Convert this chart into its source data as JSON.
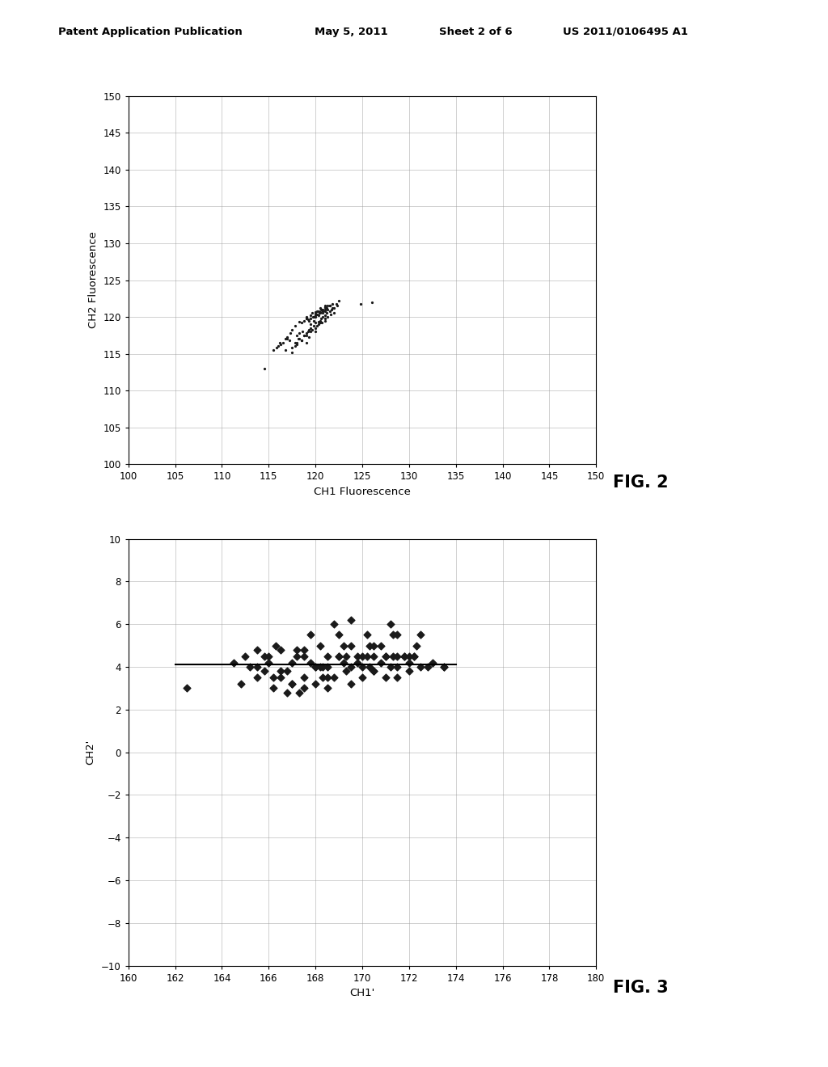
{
  "fig1": {
    "xlabel": "CH1 Fluorescence",
    "ylabel": "CH2 Fluorescence",
    "xlim": [
      100,
      150
    ],
    "ylim": [
      100,
      150
    ],
    "xticks": [
      100,
      105,
      110,
      115,
      120,
      125,
      130,
      135,
      140,
      145,
      150
    ],
    "yticks": [
      100,
      105,
      110,
      115,
      120,
      125,
      130,
      135,
      140,
      145,
      150
    ],
    "fig_label": "FIG. 2",
    "scatter_x": [
      114.5,
      116.2,
      116.8,
      117.0,
      117.2,
      117.5,
      117.8,
      118.0,
      118.0,
      118.2,
      118.3,
      118.5,
      118.6,
      118.8,
      119.0,
      119.0,
      119.2,
      119.3,
      119.5,
      119.5,
      119.6,
      119.8,
      120.0,
      120.0,
      120.0,
      120.2,
      120.3,
      120.3,
      120.5,
      120.5,
      120.6,
      120.7,
      120.8,
      120.8,
      121.0,
      121.0,
      121.0,
      121.2,
      121.2,
      121.3,
      121.5,
      121.5,
      121.6,
      121.7,
      121.8,
      122.0,
      122.0,
      122.2,
      122.3,
      122.5,
      119.0,
      119.3,
      119.8,
      120.2,
      120.5,
      120.8,
      121.0,
      121.3,
      121.5,
      121.8,
      118.5,
      119.2,
      119.7,
      120.0,
      120.4,
      120.7,
      121.0,
      121.3,
      118.8,
      119.5,
      120.0,
      120.3,
      120.8,
      121.0,
      119.0,
      119.6,
      120.2,
      120.5,
      121.0,
      118.3,
      119.0,
      119.5,
      120.0,
      120.6,
      117.5,
      118.0,
      118.5,
      119.0,
      119.5,
      120.0,
      120.5,
      121.0,
      117.8,
      118.3,
      118.8,
      119.3,
      119.8,
      120.3,
      124.8,
      126.0,
      115.5,
      115.8,
      116.0,
      116.3,
      116.5,
      116.8,
      117.0,
      117.3,
      117.5,
      117.8
    ],
    "scatter_y": [
      113.0,
      116.5,
      115.5,
      117.0,
      116.8,
      115.2,
      116.0,
      116.5,
      117.5,
      117.0,
      117.8,
      116.8,
      118.0,
      117.5,
      116.5,
      117.8,
      118.0,
      117.3,
      118.5,
      119.0,
      118.3,
      119.5,
      118.0,
      119.2,
      120.0,
      118.8,
      119.0,
      120.2,
      119.5,
      120.5,
      119.8,
      119.2,
      120.0,
      120.8,
      119.5,
      120.2,
      121.0,
      120.5,
      121.2,
      120.0,
      120.8,
      121.5,
      120.3,
      121.0,
      121.8,
      120.5,
      121.2,
      121.8,
      121.5,
      122.2,
      119.8,
      119.5,
      120.0,
      120.3,
      120.7,
      120.5,
      120.8,
      121.0,
      121.5,
      121.2,
      119.2,
      119.7,
      120.0,
      120.4,
      120.6,
      121.0,
      121.3,
      121.5,
      119.5,
      119.8,
      120.2,
      120.8,
      121.0,
      121.3,
      120.0,
      120.5,
      120.8,
      121.2,
      121.5,
      119.3,
      119.8,
      120.2,
      120.7,
      121.0,
      115.8,
      116.3,
      116.8,
      117.5,
      118.0,
      118.5,
      119.2,
      119.8,
      116.5,
      117.0,
      117.5,
      118.2,
      118.8,
      119.3,
      121.8,
      122.0,
      115.5,
      115.8,
      116.0,
      116.3,
      116.5,
      117.0,
      117.3,
      117.8,
      118.2,
      118.8
    ]
  },
  "fig2": {
    "xlabel": "CH1'",
    "ylabel": "CH2'",
    "xlim": [
      160,
      180
    ],
    "ylim": [
      -10,
      10
    ],
    "xticks": [
      160,
      162,
      164,
      166,
      168,
      170,
      172,
      174,
      176,
      178,
      180
    ],
    "yticks": [
      -10,
      -8,
      -6,
      -4,
      -2,
      0,
      2,
      4,
      6,
      8,
      10
    ],
    "fig_label": "FIG. 3",
    "hline_y": 4.1,
    "hline_xmin": 162.0,
    "hline_xmax": 174.0,
    "scatter_x": [
      162.5,
      164.5,
      165.0,
      165.2,
      165.5,
      165.8,
      166.0,
      166.2,
      166.3,
      166.5,
      166.8,
      167.0,
      167.0,
      167.2,
      167.5,
      167.5,
      167.8,
      168.0,
      168.0,
      168.2,
      168.3,
      168.5,
      168.5,
      168.8,
      169.0,
      169.0,
      169.2,
      169.3,
      169.5,
      169.5,
      169.8,
      170.0,
      170.0,
      170.2,
      170.3,
      170.5,
      170.5,
      170.8,
      171.0,
      171.0,
      171.2,
      171.3,
      171.5,
      171.5,
      171.8,
      172.0,
      172.0,
      172.2,
      172.3,
      172.5,
      172.8,
      173.0,
      173.5,
      165.5,
      166.0,
      166.5,
      167.0,
      167.5,
      168.0,
      168.5,
      169.0,
      169.5,
      170.0,
      170.5,
      171.0,
      171.5,
      172.0,
      166.2,
      167.2,
      168.2,
      169.2,
      170.2,
      171.2,
      172.2,
      165.8,
      166.8,
      167.8,
      168.8,
      169.8,
      170.8,
      171.8,
      167.3,
      168.3,
      169.3,
      170.3,
      171.3,
      165.5,
      166.5,
      167.5,
      168.5,
      169.5,
      170.5,
      171.5,
      172.5,
      173.5,
      164.8
    ],
    "scatter_y": [
      3.0,
      4.2,
      4.5,
      4.0,
      4.8,
      3.8,
      4.2,
      3.5,
      5.0,
      3.8,
      2.8,
      4.2,
      3.2,
      4.8,
      3.5,
      4.5,
      4.2,
      4.0,
      3.2,
      5.0,
      3.5,
      4.0,
      3.0,
      3.5,
      4.5,
      5.5,
      4.2,
      3.8,
      3.2,
      5.0,
      4.2,
      4.5,
      3.5,
      5.5,
      4.0,
      4.5,
      3.8,
      4.2,
      4.5,
      3.5,
      6.0,
      5.5,
      4.0,
      3.5,
      4.5,
      4.2,
      3.8,
      4.5,
      5.0,
      5.5,
      4.0,
      4.2,
      4.0,
      4.0,
      4.5,
      3.5,
      3.2,
      4.8,
      4.0,
      3.5,
      4.5,
      6.2,
      4.0,
      5.0,
      4.5,
      5.5,
      4.5,
      3.0,
      4.5,
      4.0,
      5.0,
      4.5,
      4.0,
      4.5,
      4.5,
      3.8,
      5.5,
      6.0,
      4.5,
      5.0,
      4.5,
      2.8,
      4.0,
      4.5,
      5.0,
      4.5,
      3.5,
      4.8,
      3.0,
      4.5,
      4.0,
      3.8,
      4.5,
      4.0,
      4.0,
      3.2
    ]
  },
  "header": {
    "left": "Patent Application Publication",
    "center_date": "May 5, 2011",
    "center_sheet": "Sheet 2 of 6",
    "right": "US 2011/0106495 A1"
  },
  "bg_color": "#ffffff",
  "marker_color": "#1a1a1a",
  "grid_color": "#999999",
  "page_bg": "#f0f0f0"
}
